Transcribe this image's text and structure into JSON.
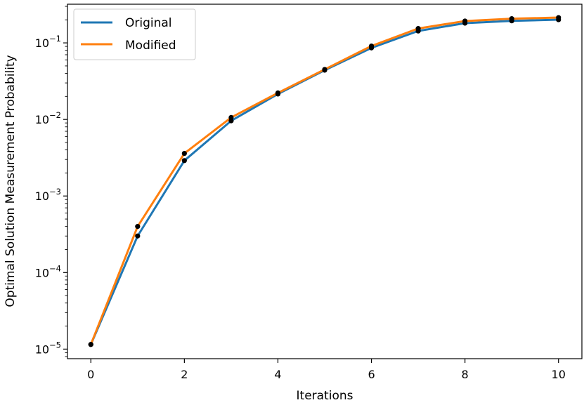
{
  "chart_data": {
    "type": "line",
    "xlabel": "Iterations",
    "ylabel": "Optimal Solution Measurement Probability",
    "yscale": "log",
    "xlim": [
      -0.5,
      10.5
    ],
    "ylim": [
      7.5e-06,
      0.32
    ],
    "x_ticks": [
      0,
      2,
      4,
      6,
      8,
      10
    ],
    "x_tick_labels": [
      "0",
      "2",
      "4",
      "6",
      "8",
      "10"
    ],
    "y_ticks": [
      1e-05,
      0.0001,
      0.001,
      0.01,
      0.1
    ],
    "y_tick_labels": [
      {
        "base": "10",
        "exp": "−5"
      },
      {
        "base": "10",
        "exp": "−4"
      },
      {
        "base": "10",
        "exp": "−3"
      },
      {
        "base": "10",
        "exp": "−2"
      },
      {
        "base": "10",
        "exp": "−1"
      }
    ],
    "grid": false,
    "legend_position": "top-left",
    "x": [
      0,
      1,
      2,
      3,
      4,
      5,
      6,
      7,
      8,
      9,
      10
    ],
    "series": [
      {
        "name": "Original",
        "color": "#1f77b4",
        "values": [
          1.15e-05,
          0.0003,
          0.0029,
          0.0096,
          0.0215,
          0.044,
          0.086,
          0.143,
          0.181,
          0.194,
          0.201
        ]
      },
      {
        "name": "Modified",
        "color": "#ff7f0e",
        "values": [
          1.15e-05,
          0.0004,
          0.0036,
          0.0106,
          0.0222,
          0.045,
          0.091,
          0.154,
          0.193,
          0.207,
          0.214
        ]
      }
    ],
    "marker_color": "#000000"
  }
}
